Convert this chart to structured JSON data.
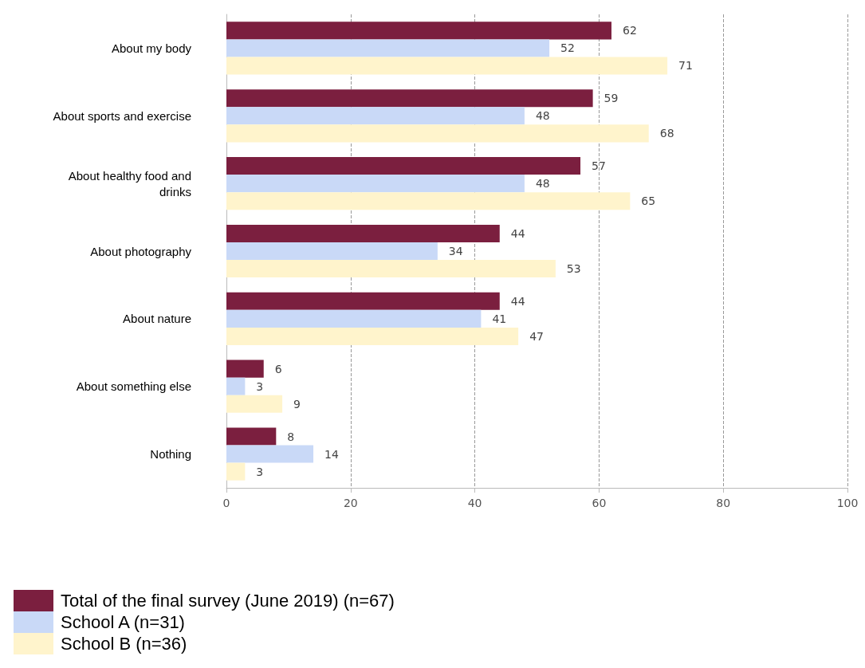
{
  "chart_data": {
    "type": "bar",
    "orientation": "horizontal",
    "categories": [
      "About my body",
      "About sports and exercise",
      "About healthy food and\ndrinks",
      "About photography",
      "About nature",
      "About something else",
      "Nothing"
    ],
    "series": [
      {
        "name": "Total of the final survey (June 2019) (n=67)",
        "color": "#7b1f3f",
        "values": [
          62,
          59,
          57,
          44,
          44,
          6,
          8
        ]
      },
      {
        "name": "School A (n=31)",
        "color": "#c9d9f7",
        "values": [
          52,
          48,
          48,
          34,
          41,
          3,
          14
        ]
      },
      {
        "name": "School B (n=36)",
        "color": "#fff4cc",
        "values": [
          71,
          68,
          65,
          53,
          47,
          9,
          3
        ]
      }
    ],
    "xlim": [
      0,
      100
    ],
    "xticks": [
      0,
      20,
      40,
      60,
      80,
      100
    ],
    "grid": "x",
    "data_labels": true,
    "legend": "bottom left"
  }
}
